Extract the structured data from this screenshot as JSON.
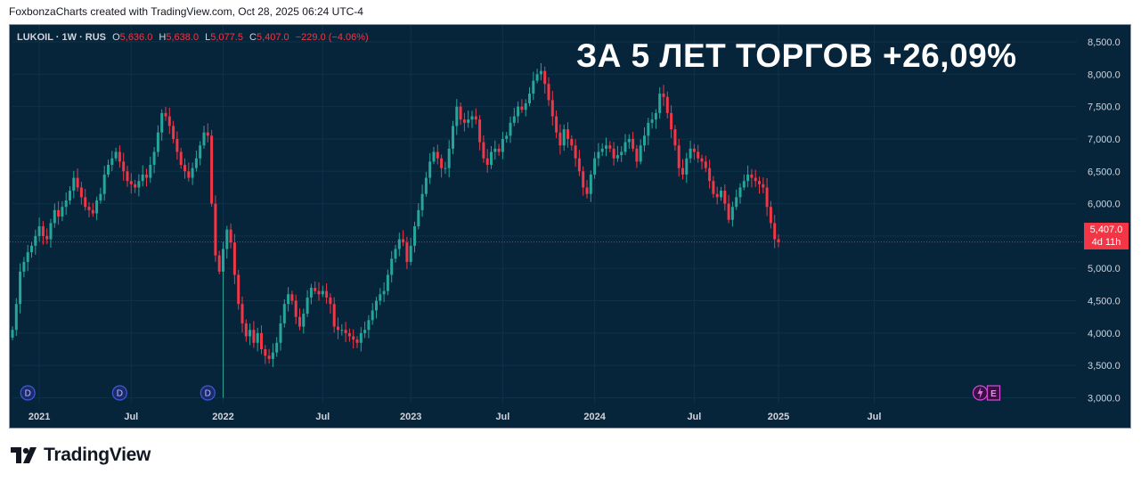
{
  "header": {
    "caption": "FoxbonzaCharts created with TradingView.com, Oct 28, 2025 06:24 UTC-4"
  },
  "legend": {
    "symbol": "LUKOIL · 1W · RUS",
    "open_label": "O",
    "open": "5,636.0",
    "high_label": "H",
    "high": "5,638.0",
    "low_label": "L",
    "low": "5,077.5",
    "close_label": "C",
    "close": "5,407.0",
    "change": "−229.0 (−4.06%)"
  },
  "headline": "ЗА 5 ЛЕТ ТОРГОВ +26,09%",
  "last_price": {
    "value": "5,407.0",
    "countdown": "4d 11h"
  },
  "events": {
    "dividend_label": "D",
    "earnings_label": "E",
    "split_icon": "lightning-icon"
  },
  "brand": {
    "name": "TradingView",
    "logo": "tradingview-logo-icon"
  },
  "colors": {
    "up": "#26a69a",
    "down": "#f23645",
    "background": "#06253a",
    "text": "#d1d4dc"
  },
  "chart_data": {
    "type": "candlestick",
    "symbol": "LUKOIL",
    "interval": "1W",
    "y_range": [
      2800,
      8800
    ],
    "y_ticks": [
      "3,000.0",
      "3,500.0",
      "4,000.0",
      "4,500.0",
      "5,000.0",
      "5,500.0",
      "6,000.0",
      "6,500.0",
      "7,000.0",
      "7,500.0",
      "8,000.0",
      "8,500.0"
    ],
    "y_tick_values": [
      3000,
      3500,
      4000,
      4500,
      5000,
      5500,
      6000,
      6500,
      7000,
      7500,
      8000,
      8500
    ],
    "x_ticks": [
      "2021",
      "Jul",
      "2022",
      "Jul",
      "2023",
      "Jul",
      "2024",
      "Jul",
      "2025",
      "Jul"
    ],
    "x_tick_weeks": [
      7,
      31,
      55,
      81,
      104,
      128,
      152,
      178,
      200,
      225
    ],
    "last_close": 5407,
    "dividend_weeks": [
      4,
      28,
      51
    ],
    "earnings_week": 255,
    "close": [
      4050,
      4450,
      4950,
      5100,
      5250,
      5350,
      5500,
      5650,
      5500,
      5450,
      5700,
      5900,
      5800,
      5950,
      6050,
      6200,
      6400,
      6250,
      6100,
      5950,
      5900,
      5850,
      6050,
      6150,
      6450,
      6600,
      6700,
      6800,
      6650,
      6500,
      6350,
      6300,
      6250,
      6350,
      6450,
      6400,
      6600,
      6800,
      7100,
      7400,
      7350,
      7200,
      7000,
      6800,
      6600,
      6500,
      6400,
      6550,
      6700,
      6900,
      7100,
      7050,
      6000,
      5200,
      4950,
      5300,
      5600,
      5400,
      4900,
      4450,
      4150,
      3950,
      4050,
      3850,
      4000,
      3750,
      3650,
      3600,
      3700,
      3850,
      4150,
      4450,
      4600,
      4500,
      4250,
      4100,
      4300,
      4550,
      4700,
      4650,
      4600,
      4650,
      4550,
      4450,
      4100,
      4050,
      4050,
      4000,
      3950,
      3900,
      3850,
      4000,
      4050,
      4200,
      4350,
      4500,
      4600,
      4650,
      4900,
      5150,
      5300,
      5450,
      5400,
      5100,
      5350,
      5650,
      5900,
      6150,
      6400,
      6650,
      6800,
      6700,
      6550,
      6550,
      6850,
      7200,
      7500,
      7300,
      7250,
      7300,
      7350,
      7300,
      6950,
      6700,
      6600,
      6800,
      6850,
      6800,
      7000,
      7050,
      7250,
      7350,
      7500,
      7450,
      7550,
      7700,
      7900,
      8000,
      8050,
      7850,
      7600,
      7350,
      7100,
      6900,
      7150,
      7000,
      6900,
      6700,
      6500,
      6250,
      6150,
      6450,
      6700,
      6800,
      6850,
      6900,
      6850,
      6700,
      6750,
      6800,
      6950,
      7000,
      6850,
      6650,
      6900,
      7050,
      7250,
      7300,
      7400,
      7700,
      7650,
      7400,
      7150,
      6900,
      6550,
      6450,
      6700,
      6850,
      6800,
      6700,
      6650,
      6550,
      6350,
      6150,
      6100,
      6200,
      6000,
      5750,
      5950,
      6100,
      6250,
      6350,
      6450,
      6400,
      6350,
      6300,
      6250,
      5950,
      5700,
      5450,
      5407
    ]
  }
}
